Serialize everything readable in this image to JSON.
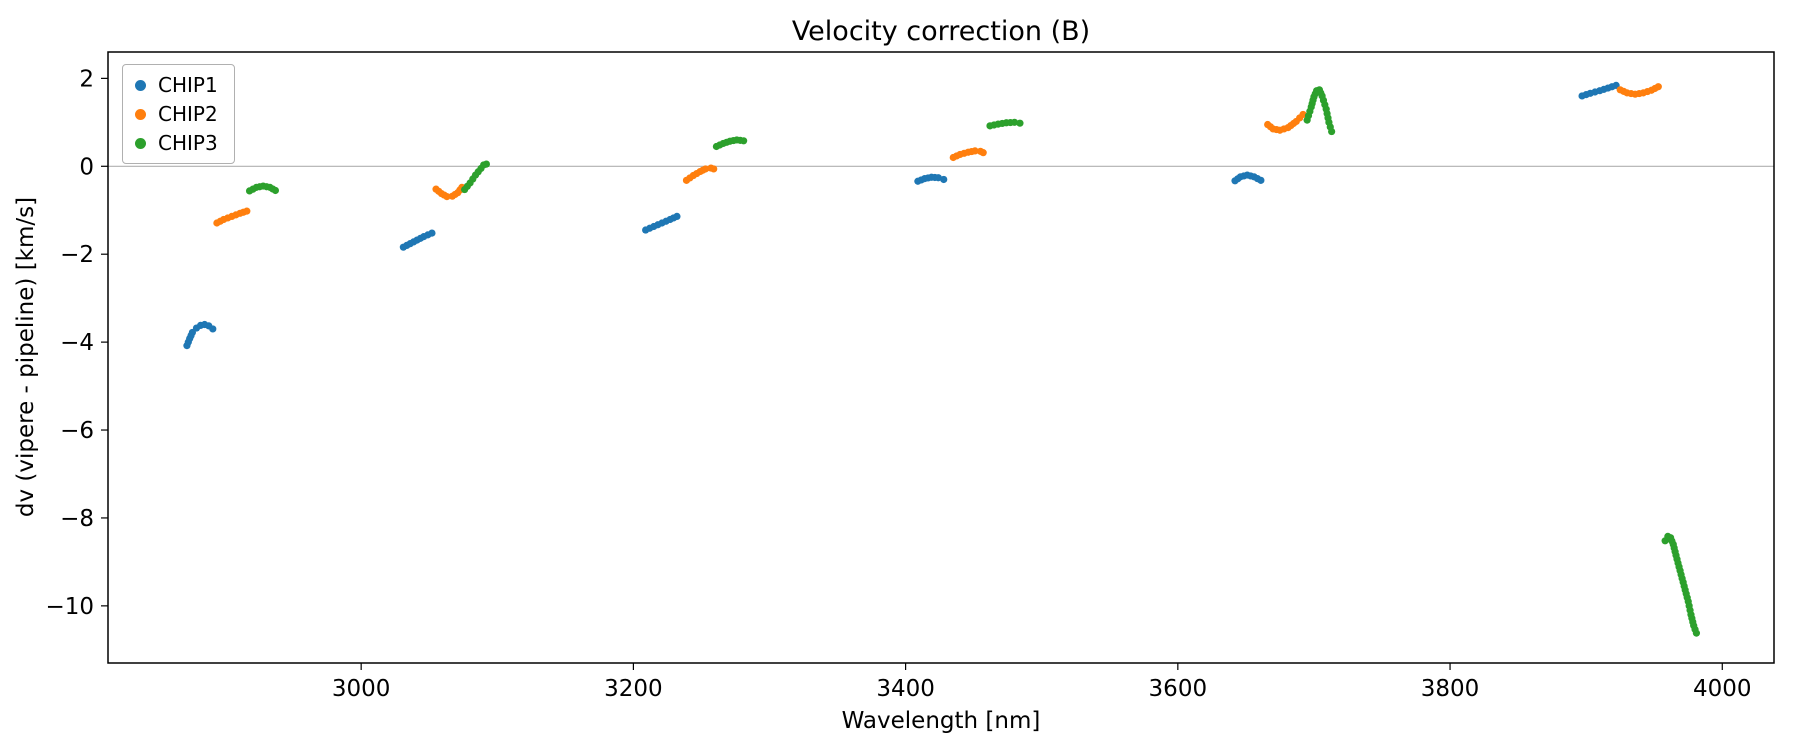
{
  "chart_data": {
    "type": "scatter",
    "title": "Velocity correction (B)",
    "xlabel": "Wavelength [nm]",
    "ylabel": "dv (vipere - pipeline) [km/s]",
    "xlim": [
      2814,
      4038
    ],
    "ylim": [
      -11.3,
      2.6
    ],
    "xticks": [
      3000,
      3200,
      3400,
      3600,
      3800,
      4000
    ],
    "yticks": [
      2,
      0,
      -2,
      -4,
      -6,
      -8,
      -10
    ],
    "grid": false,
    "zero_line": true,
    "zero_line_color": "#b0b0b0",
    "legend_position": "upper left",
    "series": [
      {
        "name": "CHIP1",
        "color": "#1f77b4",
        "segments": [
          [
            [
              2872,
              -4.08
            ],
            [
              2874,
              -3.92
            ],
            [
              2876,
              -3.78
            ],
            [
              2879,
              -3.68
            ],
            [
              2882,
              -3.62
            ],
            [
              2885,
              -3.6
            ],
            [
              2888,
              -3.63
            ],
            [
              2891,
              -3.7
            ]
          ],
          [
            [
              3031,
              -1.84
            ],
            [
              3036,
              -1.76
            ],
            [
              3041,
              -1.68
            ],
            [
              3046,
              -1.6
            ],
            [
              3052,
              -1.52
            ]
          ],
          [
            [
              3209,
              -1.45
            ],
            [
              3215,
              -1.37
            ],
            [
              3221,
              -1.29
            ],
            [
              3227,
              -1.21
            ],
            [
              3232,
              -1.14
            ]
          ],
          [
            [
              3409,
              -0.34
            ],
            [
              3414,
              -0.28
            ],
            [
              3419,
              -0.25
            ],
            [
              3424,
              -0.26
            ],
            [
              3428,
              -0.3
            ]
          ],
          [
            [
              3642,
              -0.33
            ],
            [
              3646,
              -0.24
            ],
            [
              3651,
              -0.2
            ],
            [
              3656,
              -0.24
            ],
            [
              3661,
              -0.32
            ]
          ],
          [
            [
              3897,
              1.6
            ],
            [
              3903,
              1.66
            ],
            [
              3910,
              1.72
            ],
            [
              3916,
              1.78
            ],
            [
              3922,
              1.84
            ]
          ]
        ]
      },
      {
        "name": "CHIP2",
        "color": "#ff7f0e",
        "segments": [
          [
            [
              2894,
              -1.29
            ],
            [
              2899,
              -1.21
            ],
            [
              2905,
              -1.14
            ],
            [
              2911,
              -1.07
            ],
            [
              2916,
              -1.02
            ]
          ],
          [
            [
              3055,
              -0.52
            ],
            [
              3059,
              -0.62
            ],
            [
              3063,
              -0.69
            ],
            [
              3067,
              -0.68
            ],
            [
              3071,
              -0.6
            ],
            [
              3074,
              -0.48
            ]
          ],
          [
            [
              3239,
              -0.32
            ],
            [
              3244,
              -0.21
            ],
            [
              3249,
              -0.12
            ],
            [
              3253,
              -0.06
            ],
            [
              3257,
              -0.04
            ],
            [
              3259,
              -0.06
            ]
          ],
          [
            [
              3435,
              0.2
            ],
            [
              3440,
              0.27
            ],
            [
              3446,
              0.32
            ],
            [
              3451,
              0.35
            ],
            [
              3455,
              0.34
            ],
            [
              3457,
              0.31
            ]
          ],
          [
            [
              3666,
              0.95
            ],
            [
              3670,
              0.85
            ],
            [
              3675,
              0.82
            ],
            [
              3681,
              0.88
            ],
            [
              3687,
              1.02
            ],
            [
              3692,
              1.18
            ]
          ],
          [
            [
              3925,
              1.74
            ],
            [
              3930,
              1.67
            ],
            [
              3936,
              1.64
            ],
            [
              3942,
              1.67
            ],
            [
              3948,
              1.73
            ],
            [
              3953,
              1.81
            ]
          ]
        ]
      },
      {
        "name": "CHIP3",
        "color": "#2ca02c",
        "segments": [
          [
            [
              2918,
              -0.56
            ],
            [
              2923,
              -0.48
            ],
            [
              2928,
              -0.45
            ],
            [
              2933,
              -0.48
            ],
            [
              2937,
              -0.55
            ]
          ],
          [
            [
              3076,
              -0.53
            ],
            [
              3080,
              -0.38
            ],
            [
              3084,
              -0.2
            ],
            [
              3088,
              -0.05
            ],
            [
              3090,
              0.03
            ],
            [
              3092,
              0.05
            ]
          ],
          [
            [
              3261,
              0.45
            ],
            [
              3266,
              0.52
            ],
            [
              3271,
              0.57
            ],
            [
              3276,
              0.6
            ],
            [
              3281,
              0.58
            ]
          ],
          [
            [
              3462,
              0.92
            ],
            [
              3468,
              0.96
            ],
            [
              3474,
              0.99
            ],
            [
              3480,
              1.0
            ],
            [
              3484,
              0.98
            ]
          ],
          [
            [
              3695,
              1.05
            ],
            [
              3698,
              1.35
            ],
            [
              3700,
              1.58
            ],
            [
              3702,
              1.72
            ],
            [
              3704,
              1.74
            ],
            [
              3706,
              1.6
            ],
            [
              3709,
              1.3
            ],
            [
              3711,
              1.0
            ],
            [
              3713,
              0.79
            ]
          ],
          [
            [
              3958,
              -8.52
            ],
            [
              3960,
              -8.42
            ],
            [
              3962,
              -8.45
            ],
            [
              3964,
              -8.6
            ],
            [
              3966,
              -8.85
            ],
            [
              3969,
              -9.2
            ],
            [
              3972,
              -9.55
            ],
            [
              3975,
              -9.9
            ],
            [
              3977,
              -10.2
            ],
            [
              3979,
              -10.45
            ],
            [
              3981,
              -10.62
            ]
          ]
        ]
      }
    ]
  }
}
